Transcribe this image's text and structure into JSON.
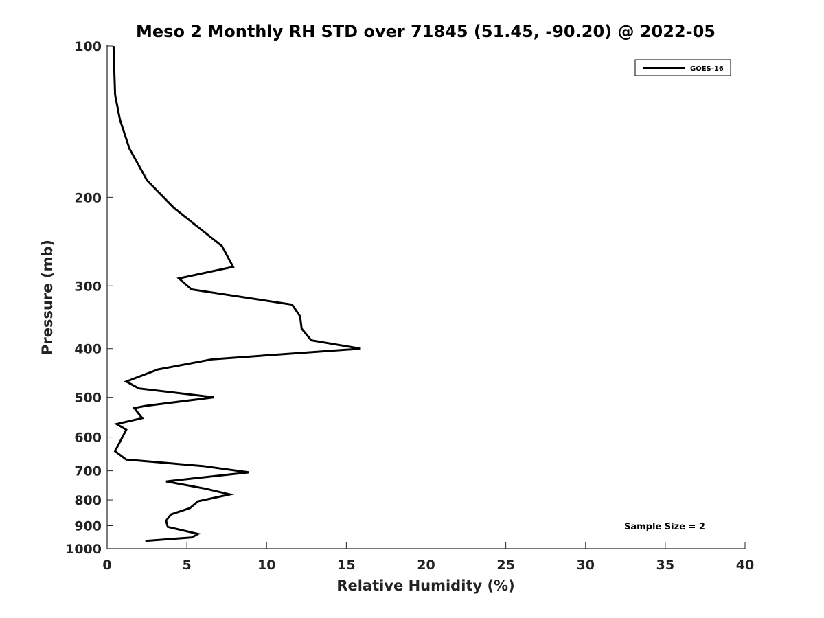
{
  "chart_data": {
    "type": "line",
    "title": "Meso 2 Monthly RH STD over 71845 (51.45, -90.20) @ 2022-05",
    "xlabel": "Relative Humidity (%)",
    "ylabel": "Pressure (mb)",
    "xlim": [
      0,
      40
    ],
    "ylim": [
      100,
      1000
    ],
    "yscale": "log",
    "y_reversed": true,
    "grid": false,
    "legend_position": "top-right",
    "x_ticks": [
      0,
      5,
      10,
      15,
      20,
      25,
      30,
      35,
      40
    ],
    "x_tick_labels": [
      "0",
      "5",
      "10",
      "15",
      "20",
      "25",
      "30",
      "35",
      "40"
    ],
    "y_ticks": [
      100,
      200,
      300,
      400,
      500,
      600,
      700,
      800,
      900,
      1000
    ],
    "y_tick_labels": [
      "100",
      "200",
      "300",
      "400",
      "500",
      "600",
      "700",
      "800",
      "900",
      "1000"
    ],
    "annotation": "Sample Size = 2",
    "line_color": "#000000",
    "series": [
      {
        "name": "GOES-16",
        "x": [
          0.4,
          0.5,
          0.8,
          1.4,
          2.5,
          4.2,
          7.2,
          7.9,
          4.5,
          5.3,
          11.6,
          12.1,
          12.2,
          12.8,
          15.9,
          6.6,
          3.2,
          1.2,
          2.0,
          6.7,
          2.4,
          1.7,
          2.2,
          0.6,
          1.2,
          0.9,
          0.5,
          1.2,
          6.0,
          8.9,
          3.7,
          6.2,
          7.7,
          5.7,
          5.2,
          4.0,
          3.7,
          3.8,
          5.7,
          5.3,
          2.4
        ],
        "y": [
          100,
          125,
          140,
          160,
          185,
          210,
          250,
          275,
          290,
          305,
          327,
          345,
          365,
          385,
          400,
          420,
          440,
          465,
          480,
          500,
          520,
          525,
          550,
          565,
          580,
          605,
          640,
          665,
          685,
          705,
          735,
          760,
          780,
          805,
          830,
          855,
          880,
          905,
          935,
          950,
          965
        ]
      }
    ]
  }
}
